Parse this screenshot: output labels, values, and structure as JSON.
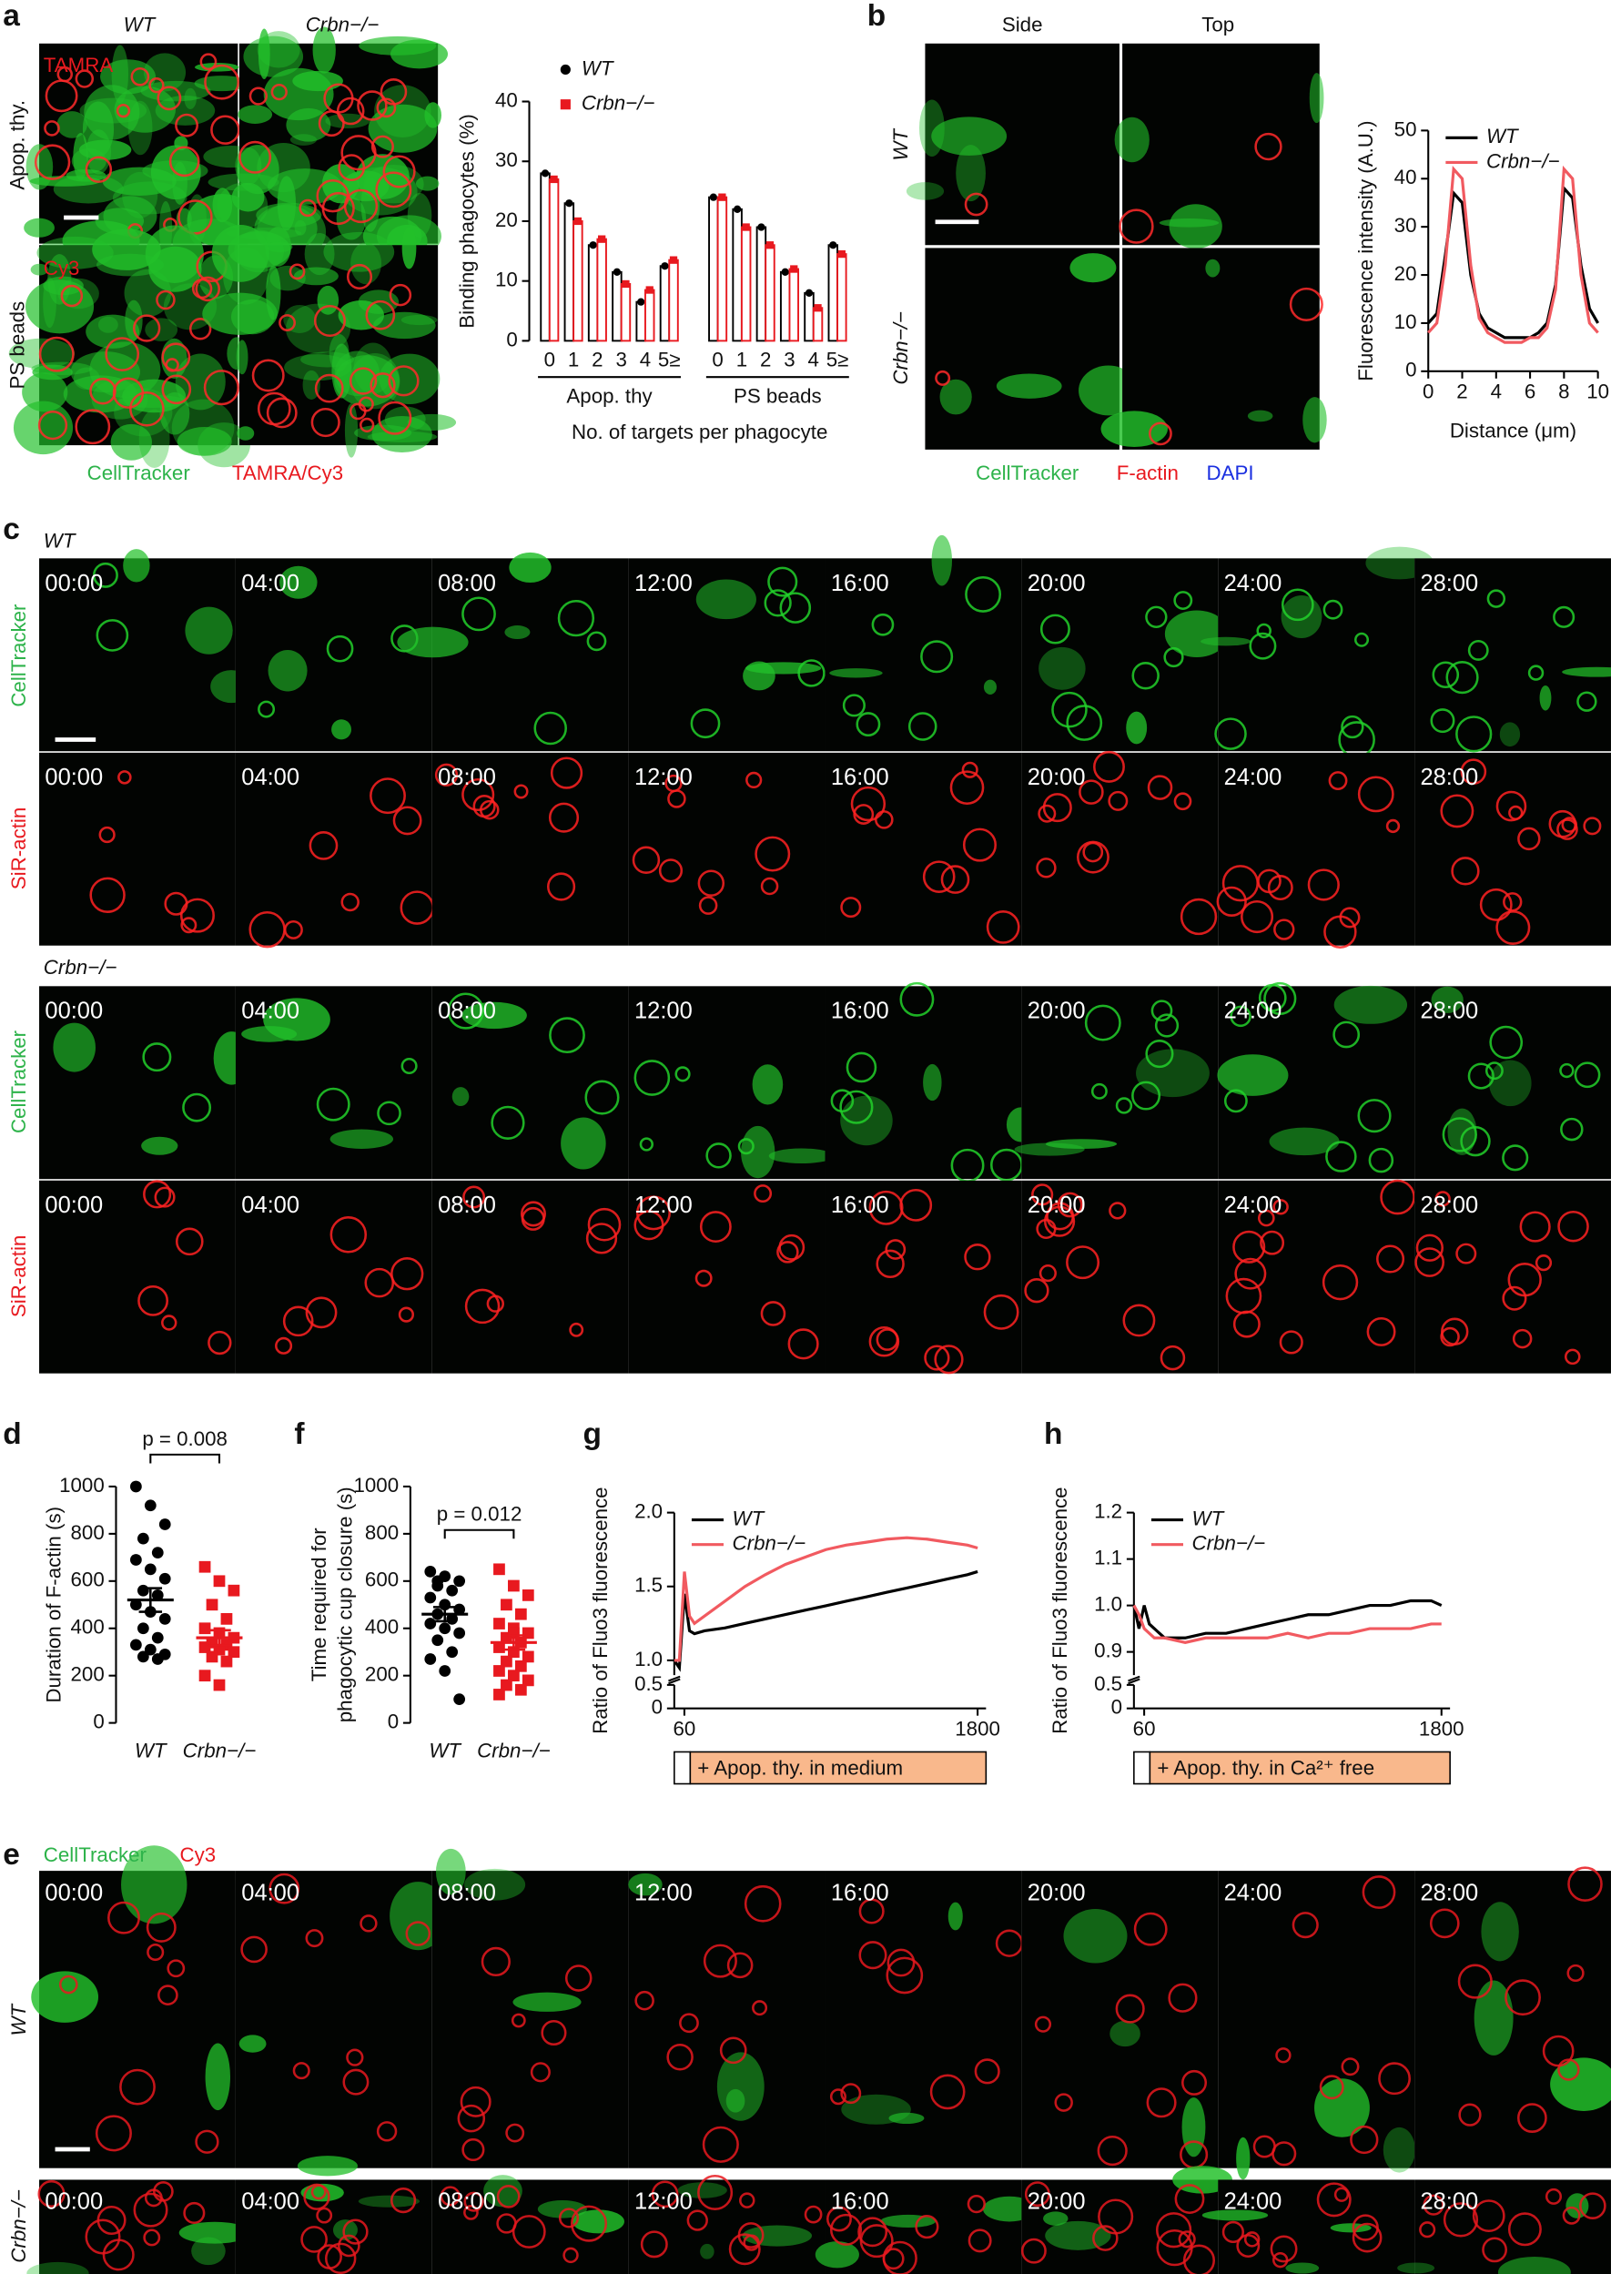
{
  "panel_labels": [
    "a",
    "b",
    "c",
    "d",
    "e",
    "f",
    "g",
    "h"
  ],
  "a": {
    "genotypes": [
      "WT",
      "Crbn−/−"
    ],
    "stains": [
      "TAMRA",
      "Cy3"
    ],
    "rows": [
      "Apop. thy.",
      "PS beads"
    ],
    "caption": [
      "CellTracker",
      "TAMRA/Cy3"
    ]
  },
  "b": {
    "views": [
      "Side",
      "Top"
    ],
    "genotypes": [
      "WT",
      "Crbn−/−"
    ],
    "caption": [
      "CellTracker",
      "F-actin",
      "DAPI"
    ]
  },
  "c": {
    "genotypes": [
      "WT",
      "Crbn−/−"
    ],
    "channels": [
      "CellTracker",
      "SiR-actin"
    ],
    "times": [
      "00:00",
      "04:00",
      "08:00",
      "12:00",
      "16:00",
      "20:00",
      "24:00",
      "28:00"
    ]
  },
  "e": {
    "caption": [
      "CellTracker",
      "Cy3"
    ],
    "genotypes": [
      "WT",
      "Crbn−/−"
    ],
    "times": [
      "00:00",
      "04:00",
      "08:00",
      "12:00",
      "16:00",
      "20:00",
      "24:00",
      "28:00"
    ]
  },
  "chart_data": [
    {
      "type": "bar",
      "categories": [
        "0",
        "1",
        "2",
        "3",
        "4",
        "5≥",
        "0",
        "1",
        "2",
        "3",
        "4",
        "5≥"
      ],
      "groups": [
        "Apop. thy",
        "PS beads"
      ],
      "xlabel": "No. of targets per phagocyte",
      "ylabel": "Binding phagocytes (%)",
      "ylim": [
        0,
        40
      ],
      "yticks": [
        0,
        10,
        20,
        30,
        40
      ],
      "series": [
        {
          "name": "WT",
          "color": "#000000",
          "marker": "circle",
          "values": [
            28,
            23,
            16,
            11.5,
            6.5,
            12.5,
            24,
            22,
            19,
            11.5,
            8,
            16
          ]
        },
        {
          "name": "Crbn−/−",
          "color": "#e8191f",
          "marker": "square",
          "values": [
            27,
            20,
            17,
            9.5,
            8.5,
            13.5,
            24,
            19,
            16,
            12,
            5.5,
            14.5
          ]
        }
      ]
    },
    {
      "type": "line",
      "xlabel": "Distance (μm)",
      "ylabel": "Fluorescence intensity (A.U.)",
      "x": [
        0,
        0.5,
        1,
        1.5,
        2,
        2.5,
        3,
        3.5,
        4,
        4.5,
        5,
        5.5,
        6,
        6.5,
        7,
        7.5,
        8,
        8.5,
        9,
        9.5,
        10
      ],
      "xlim": [
        0,
        10
      ],
      "xticks": [
        0,
        2,
        4,
        6,
        8,
        10
      ],
      "ylim": [
        0,
        50
      ],
      "yticks": [
        0,
        10,
        20,
        30,
        40,
        50
      ],
      "series": [
        {
          "name": "WT",
          "color": "#000000",
          "values": [
            10,
            12,
            24,
            37,
            35,
            20,
            12,
            9,
            8,
            7,
            7,
            7,
            7,
            8,
            10,
            18,
            38,
            36,
            22,
            13,
            10
          ]
        },
        {
          "name": "Crbn−/−",
          "color": "#f15a60",
          "values": [
            8,
            10,
            22,
            42,
            40,
            22,
            11,
            8,
            7,
            6,
            6,
            6,
            7,
            7,
            9,
            17,
            42,
            40,
            20,
            10,
            8
          ]
        }
      ]
    },
    {
      "type": "dot",
      "ylabel": "Duration of F-actin (s)",
      "annotation": "p = 0.008",
      "categories": [
        "WT",
        "Crbn−/−"
      ],
      "colors": [
        "#000000",
        "#e8191f"
      ],
      "markers": [
        "circle",
        "square"
      ],
      "ylim": [
        0,
        1000
      ],
      "yticks": [
        0,
        200,
        400,
        600,
        800,
        1000
      ],
      "values": [
        [
          1000,
          920,
          840,
          780,
          720,
          690,
          650,
          610,
          560,
          540,
          500,
          470,
          440,
          400,
          360,
          330,
          310,
          290,
          280,
          270
        ],
        [
          660,
          600,
          560,
          500,
          440,
          400,
          380,
          360,
          340,
          330,
          320,
          310,
          300,
          280,
          260,
          200,
          160
        ]
      ],
      "mean": [
        520,
        360
      ],
      "sem": [
        50,
        32
      ]
    },
    {
      "type": "dot",
      "ylabel": [
        "Time required for",
        "phagocytic cup closure (s)"
      ],
      "annotation": "p = 0.012",
      "categories": [
        "WT",
        "Crbn−/−"
      ],
      "colors": [
        "#000000",
        "#e8191f"
      ],
      "markers": [
        "circle",
        "square"
      ],
      "ylim": [
        0,
        1000
      ],
      "yticks": [
        0,
        200,
        400,
        600,
        800,
        1000
      ],
      "values": [
        [
          640,
          620,
          600,
          580,
          560,
          530,
          500,
          480,
          460,
          440,
          420,
          400,
          380,
          350,
          300,
          270,
          220,
          100,
          600
        ],
        [
          650,
          580,
          540,
          500,
          460,
          420,
          400,
          380,
          360,
          340,
          320,
          300,
          280,
          260,
          240,
          220,
          200,
          180,
          160,
          140,
          120,
          380
        ]
      ],
      "mean": [
        460,
        340
      ],
      "sem": [
        30,
        30
      ]
    },
    {
      "type": "line",
      "ylabel": "Ratio of Fluo3 fluorescence",
      "annotation": "+ Apop. thy. in medium",
      "x": [
        0,
        30,
        60,
        90,
        120,
        180,
        300,
        420,
        540,
        660,
        780,
        900,
        1020,
        1140,
        1260,
        1380,
        1500,
        1620,
        1740,
        1800
      ],
      "xlim": [
        0,
        1850
      ],
      "xticks": [
        60,
        1800
      ],
      "ylim": [
        0,
        2
      ],
      "ybreak": [
        0.5,
        0.9
      ],
      "yticks": [
        0,
        0.5,
        {
          "value": 1,
          "label": "1.0"
        },
        1.5,
        {
          "value": 2,
          "label": "2.0"
        }
      ],
      "series": [
        {
          "name": "WT",
          "color": "#000000",
          "values": [
            1.0,
            0.95,
            1.45,
            1.2,
            1.18,
            1.2,
            1.22,
            1.25,
            1.28,
            1.31,
            1.34,
            1.37,
            1.4,
            1.43,
            1.46,
            1.49,
            1.52,
            1.55,
            1.58,
            1.6
          ]
        },
        {
          "name": "Crbn−/−",
          "color": "#f15a60",
          "values": [
            1.0,
            1.0,
            1.6,
            1.3,
            1.25,
            1.3,
            1.4,
            1.5,
            1.58,
            1.65,
            1.7,
            1.75,
            1.78,
            1.8,
            1.82,
            1.83,
            1.82,
            1.8,
            1.78,
            1.76
          ]
        }
      ]
    },
    {
      "type": "line",
      "ylabel": "Ratio of Fluo3 fluorescence",
      "annotation": "+ Apop. thy. in Ca²⁺ free",
      "x": [
        0,
        30,
        60,
        90,
        120,
        180,
        300,
        420,
        540,
        660,
        780,
        900,
        1020,
        1140,
        1260,
        1380,
        1500,
        1620,
        1740,
        1800
      ],
      "xlim": [
        0,
        1850
      ],
      "xticks": [
        60,
        1800
      ],
      "ylim": [
        0,
        1.2
      ],
      "ybreak": [
        0.5,
        0.85
      ],
      "yticks": [
        0,
        0.5,
        0.9,
        {
          "value": 1,
          "label": "1.0"
        },
        1.1,
        1.2
      ],
      "series": [
        {
          "name": "WT",
          "color": "#000000",
          "values": [
            1.0,
            0.95,
            1.0,
            0.96,
            0.95,
            0.93,
            0.93,
            0.94,
            0.94,
            0.95,
            0.96,
            0.97,
            0.98,
            0.98,
            0.99,
            1.0,
            1.0,
            1.01,
            1.01,
            1.0
          ]
        },
        {
          "name": "Crbn−/−",
          "color": "#f15a60",
          "values": [
            1.0,
            0.98,
            0.95,
            0.94,
            0.93,
            0.93,
            0.92,
            0.93,
            0.93,
            0.93,
            0.93,
            0.94,
            0.93,
            0.94,
            0.94,
            0.95,
            0.95,
            0.95,
            0.96,
            0.96
          ]
        }
      ]
    }
  ]
}
